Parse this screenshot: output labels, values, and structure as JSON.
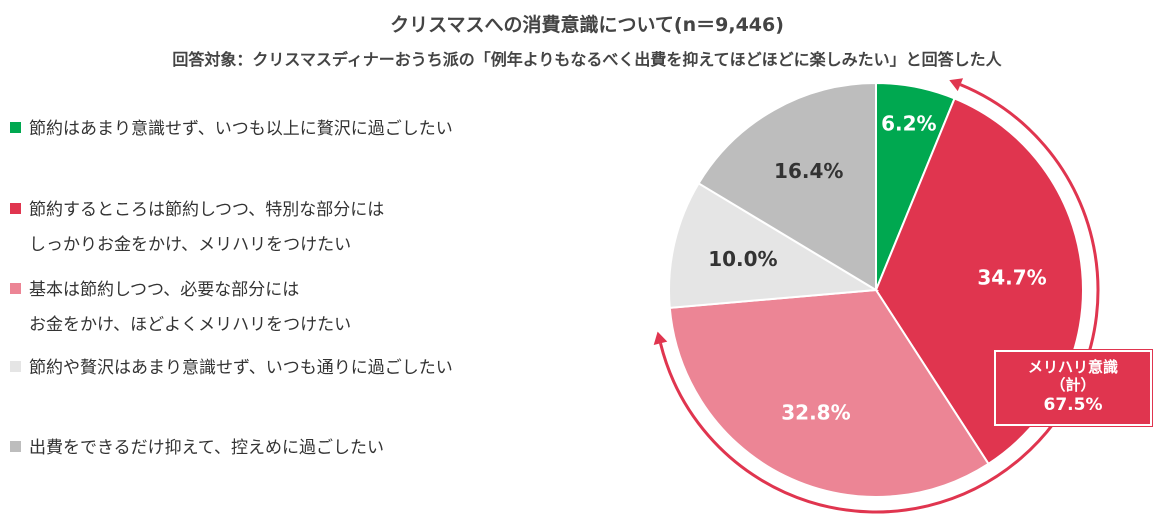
{
  "chart_data": {
    "type": "pie",
    "title": "クリスマスへの消費意識について(n＝9,446)",
    "subtitle": "回答対象：クリスマスディナーおうち派の「例年よりもなるべく出費を抑えてほどほどに楽しみたい」と回答した人",
    "start": "top",
    "direction": "clockwise",
    "slices": [
      {
        "label": [
          "節約はあまり意識せず、いつも以上に贅沢に過ごしたい"
        ],
        "value": 6.2,
        "value_label": "6.2%",
        "color": "#00a850",
        "text_color": "#ffffff"
      },
      {
        "label": [
          "節約するところは節約しつつ、特別な部分には",
          "しっかりお金をかけ、メリハリをつけたい"
        ],
        "value": 34.7,
        "value_label": "34.7%",
        "color": "#e0354f",
        "text_color": "#ffffff"
      },
      {
        "label": [
          "基本は節約しつつ、必要な部分には",
          "お金をかけ、ほどよくメリハリをつけたい"
        ],
        "value": 32.8,
        "value_label": "32.8%",
        "color": "#ec8595",
        "text_color": "#ffffff"
      },
      {
        "label": [
          "節約や贅沢はあまり意識せず、いつも通りに過ごしたい"
        ],
        "value": 10.0,
        "value_label": "10.0%",
        "color": "#e5e5e5",
        "text_color": "#333333"
      },
      {
        "label": [
          "出費をできるだけ抑えて、控えめに過ごしたい"
        ],
        "value": 16.4,
        "value_label": "16.4%",
        "color": "#bdbdbd",
        "text_color": "#333333"
      }
    ],
    "legend_position": "left",
    "annotation": {
      "lines": [
        "メリハリ意識",
        "（計）",
        "67.5%"
      ],
      "color": "#e0354f"
    }
  }
}
